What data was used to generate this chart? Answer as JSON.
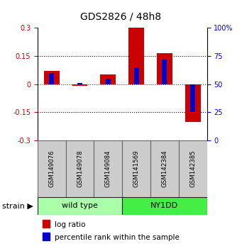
{
  "title": "GDS2826 / 48h8",
  "samples": [
    "GSM149076",
    "GSM149078",
    "GSM149084",
    "GSM141569",
    "GSM142384",
    "GSM142385"
  ],
  "log_ratios": [
    0.07,
    -0.01,
    0.05,
    0.3,
    0.165,
    -0.2
  ],
  "percentile_ranks": [
    60,
    51,
    55,
    65,
    72,
    25
  ],
  "groups": [
    {
      "label": "wild type",
      "indices": [
        0,
        1,
        2
      ],
      "color": "#aaffaa"
    },
    {
      "label": "NY1DD",
      "indices": [
        3,
        4,
        5
      ],
      "color": "#44ee44"
    }
  ],
  "ylim": [
    -0.3,
    0.3
  ],
  "yticks_left": [
    -0.3,
    -0.15,
    0,
    0.15,
    0.3
  ],
  "yticks_right": [
    0,
    25,
    50,
    75,
    100
  ],
  "bar_color_log": "#cc0000",
  "bar_color_pct": "#0000cc",
  "bg_color": "#ffffff",
  "zero_line_color": "#cc0000",
  "title_fontsize": 10,
  "tick_fontsize": 7,
  "label_fontsize": 8,
  "legend_fontsize": 7.5
}
